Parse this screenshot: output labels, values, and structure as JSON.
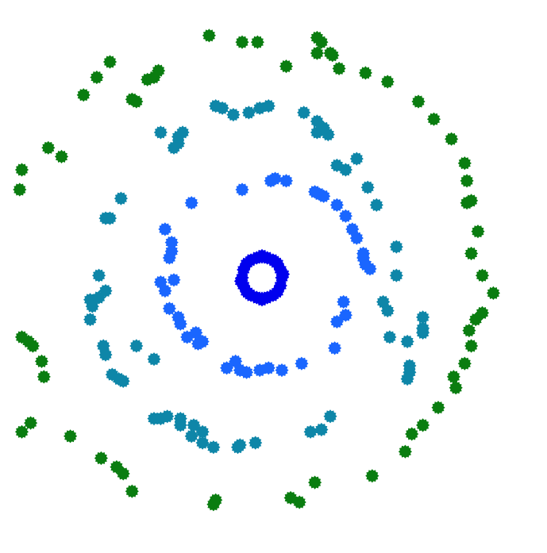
{
  "chart_data": {
    "type": "scatter",
    "title": "",
    "xlabel": "",
    "ylabel": "",
    "xlim": [
      -6.1,
      6.1
    ],
    "ylim": [
      -6.1,
      6.1
    ],
    "grid": false,
    "axes_visible": false,
    "legend": "none",
    "marker": "spiky-circle",
    "series": [
      {
        "color": "#0000ee",
        "x": [
          0.45,
          0.42,
          0.35,
          0.25,
          0.12,
          0.0,
          -0.12,
          -0.25,
          -0.35,
          -0.42,
          -0.45,
          -0.42,
          -0.35,
          -0.25,
          -0.12,
          0.0,
          0.12,
          0.25,
          0.35,
          0.42,
          0.48,
          -0.48,
          0.3,
          -0.3,
          0.0,
          0.0
        ],
        "y": [
          0.0,
          0.18,
          0.32,
          0.4,
          0.45,
          0.47,
          0.45,
          0.4,
          0.32,
          0.18,
          0.0,
          -0.18,
          -0.32,
          -0.4,
          -0.45,
          -0.47,
          -0.45,
          -0.4,
          -0.32,
          -0.18,
          0.08,
          -0.08,
          0.36,
          -0.36,
          0.5,
          -0.5
        ]
      },
      {
        "color": "#1a66ff",
        "x": [
          0.55,
          -0.45,
          -1.6,
          -2.2,
          -2.05,
          -2.05,
          -2.1,
          -2.0,
          -2.3,
          -2.2,
          -2.1,
          -1.85,
          -1.7,
          -0.6,
          -0.5,
          -0.05,
          0.15,
          0.45,
          0.9,
          1.7,
          1.9,
          1.85,
          1.65,
          0.2,
          0.3,
          1.2,
          1.3,
          1.4,
          1.7,
          1.9,
          2.05,
          2.15,
          2.3,
          2.35,
          2.45,
          2.3,
          -0.8,
          -0.35,
          -1.9,
          -1.5,
          -1.35,
          -1.45
        ],
        "y": [
          2.2,
          2.0,
          1.7,
          1.1,
          0.8,
          0.6,
          0.45,
          -0.05,
          -0.1,
          -0.3,
          -0.7,
          -1.05,
          -1.35,
          -1.9,
          -2.1,
          -2.1,
          -2.05,
          -2.1,
          -1.95,
          -1.0,
          -0.85,
          -0.55,
          -1.6,
          2.2,
          2.25,
          1.95,
          1.9,
          1.85,
          1.65,
          1.4,
          1.1,
          0.9,
          0.55,
          0.3,
          0.2,
          0.45,
          -2.05,
          -2.15,
          -0.9,
          -1.25,
          -1.45,
          -1.5
        ]
      },
      {
        "color": "#0e86a8",
        "x": [
          -1.05,
          -0.9,
          -0.65,
          -0.3,
          -0.05,
          0.15,
          -1.8,
          -1.9,
          -2.0,
          -2.3,
          -3.2,
          -3.45,
          -3.55,
          -3.7,
          -3.9,
          -3.85,
          -3.9,
          -3.6,
          -3.55,
          -3.4,
          -3.25,
          -3.15,
          -2.45,
          -2.15,
          -1.85,
          -1.6,
          -1.35,
          -1.1,
          -0.55,
          -0.15,
          1.25,
          1.5,
          1.7,
          1.9,
          2.15,
          2.4,
          2.6,
          3.05,
          3.05,
          2.75,
          2.85,
          2.9,
          3.3,
          3.65,
          3.65,
          3.65,
          3.35,
          3.35,
          3.3,
          1.1,
          1.35,
          1.55,
          -3.7,
          -3.55,
          -2.85,
          -2.45,
          -2.3,
          -1.85,
          -1.55,
          -1.35,
          1.4,
          1.25,
          0.95,
          -0.5,
          -1.9
        ],
        "y": [
          3.9,
          3.85,
          3.7,
          3.75,
          3.85,
          3.9,
          3.3,
          3.05,
          2.95,
          3.3,
          1.8,
          1.35,
          1.35,
          0.05,
          -0.5,
          -0.65,
          -0.95,
          -1.55,
          -1.75,
          -2.2,
          -2.3,
          -2.35,
          -3.2,
          -3.15,
          -3.35,
          -3.6,
          -3.75,
          -3.85,
          -3.85,
          -3.75,
          3.3,
          3.25,
          2.55,
          2.45,
          2.7,
          2.05,
          1.65,
          0.7,
          0.05,
          -0.55,
          -0.75,
          -1.35,
          -1.45,
          -0.9,
          -1.15,
          -1.25,
          -2.0,
          -2.15,
          -2.3,
          -3.5,
          -3.45,
          -3.15,
          -0.45,
          -0.3,
          -1.55,
          -1.85,
          -3.2,
          -3.2,
          -3.35,
          -3.5,
          3.4,
          3.55,
          3.75,
          -3.8,
          3.2
        ]
      },
      {
        "color": "#0a7d10",
        "x": [
          -0.45,
          -1.2,
          -0.1,
          0.55,
          1.25,
          1.35,
          1.6,
          1.75,
          2.35,
          2.85,
          3.55,
          3.9,
          4.3,
          4.6,
          4.65,
          4.75,
          4.65,
          4.9,
          4.75,
          5.0,
          5.25,
          5.0,
          4.85,
          4.7,
          4.75,
          4.6,
          4.35,
          4.4,
          4.0,
          3.65,
          3.4,
          3.25,
          2.5,
          1.2,
          0.85,
          0.65,
          -1.05,
          -1.1,
          -2.95,
          -3.15,
          -3.3,
          -3.65,
          -4.35,
          -5.45,
          -5.3,
          -5.2,
          -5.0,
          -4.95,
          -5.25,
          -5.45,
          -5.5,
          -5.45,
          -4.85,
          -4.55,
          -4.05,
          -3.75,
          -3.45,
          -2.85,
          -2.95,
          -2.6,
          -2.45,
          -2.35,
          1.25,
          1.55
        ],
        "y": [
          5.35,
          5.5,
          5.35,
          4.8,
          5.45,
          5.35,
          5.05,
          4.75,
          4.65,
          4.45,
          4.0,
          3.6,
          3.15,
          2.6,
          2.2,
          1.75,
          1.7,
          1.05,
          0.55,
          0.05,
          -0.35,
          -0.8,
          -0.95,
          -1.2,
          -1.55,
          -1.95,
          -2.25,
          -2.5,
          -2.95,
          -3.35,
          -3.55,
          -3.95,
          -4.5,
          -4.65,
          -5.1,
          -5.0,
          -5.05,
          -5.15,
          -4.85,
          -4.45,
          -4.3,
          -4.1,
          -3.6,
          -1.35,
          -1.45,
          -1.55,
          -1.9,
          -2.25,
          -3.3,
          -3.5,
          2.0,
          2.45,
          2.95,
          2.75,
          4.15,
          4.55,
          4.9,
          4.0,
          4.05,
          4.5,
          4.55,
          4.7,
          5.1,
          5.1
        ]
      }
    ]
  }
}
